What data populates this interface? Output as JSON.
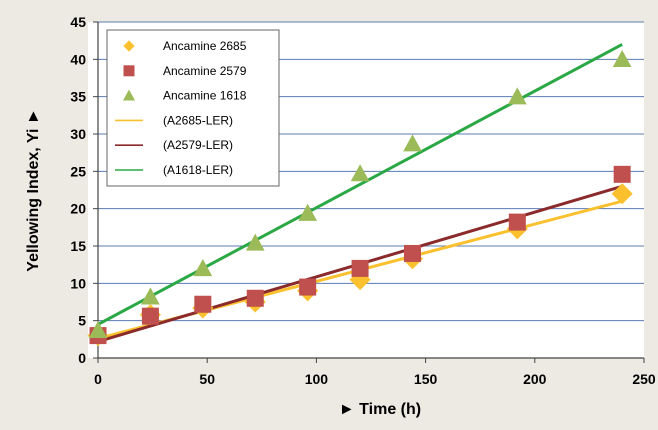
{
  "chart_data": {
    "type": "scatter",
    "xlabel": "► Time (h)",
    "ylabel": "Yellowing Index, Yi ►",
    "xlim": [
      0,
      250
    ],
    "ylim": [
      0,
      45
    ],
    "x_ticks": [
      "0",
      "50",
      "100",
      "150",
      "200",
      "250"
    ],
    "y_ticks": [
      "0",
      "5",
      "10",
      "15",
      "20",
      "25",
      "30",
      "35",
      "40",
      "45"
    ],
    "grid": "horizontal",
    "legend_position": "top-left",
    "series": [
      {
        "name": "Ancamine 2685",
        "kind": "points",
        "marker": "diamond",
        "color": "#fbc02d",
        "x": [
          0,
          24,
          48,
          72,
          96,
          120,
          144,
          192,
          240
        ],
        "y": [
          3.0,
          5.8,
          6.7,
          7.5,
          9.0,
          10.5,
          13.3,
          17.3,
          22.0
        ]
      },
      {
        "name": "Ancamine 2579",
        "kind": "points",
        "marker": "square",
        "color": "#c0504d",
        "x": [
          0,
          24,
          48,
          72,
          96,
          120,
          144,
          192,
          240
        ],
        "y": [
          3.0,
          5.6,
          7.2,
          8.0,
          9.5,
          12.0,
          14.0,
          18.2,
          24.6
        ]
      },
      {
        "name": "Ancamine 1618",
        "kind": "points",
        "marker": "triangle",
        "color": "#9bbb59",
        "x": [
          0,
          24,
          48,
          72,
          96,
          120,
          144,
          192,
          240
        ],
        "y": [
          3.7,
          8.2,
          12.0,
          15.4,
          19.4,
          24.7,
          28.7,
          35.0,
          40.0
        ]
      },
      {
        "name": "(A2685-LER)",
        "kind": "line",
        "color": "#fbc02d",
        "x": [
          0,
          240
        ],
        "y": [
          2.6,
          21.0
        ]
      },
      {
        "name": "(A2579-LER)",
        "kind": "line",
        "color": "#8b2a2a",
        "x": [
          0,
          240
        ],
        "y": [
          2.2,
          23.0
        ]
      },
      {
        "name": "(A1618-LER)",
        "kind": "line",
        "color": "#2aa845",
        "x": [
          0,
          240
        ],
        "y": [
          4.5,
          42.0
        ]
      }
    ]
  }
}
